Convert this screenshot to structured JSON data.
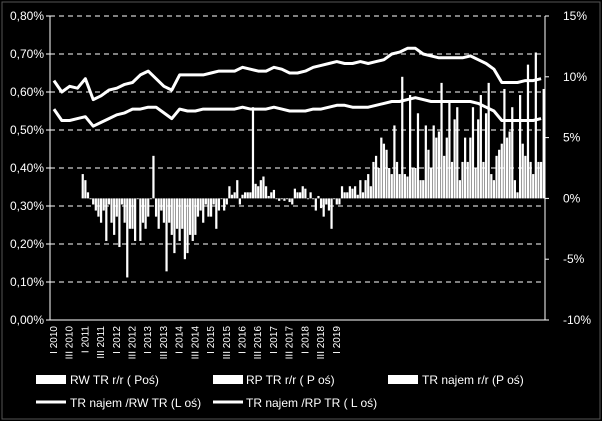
{
  "chart_data": {
    "type": "bar",
    "background": "#000000",
    "foreground": "#ffffff",
    "grid": "dashed horizontal",
    "legend_position": "bottom",
    "y_left": {
      "range": [
        0,
        0.8
      ],
      "ticks": [
        0,
        0.1,
        0.2,
        0.3,
        0.4,
        0.5,
        0.6,
        0.7,
        0.8
      ],
      "tick_labels": [
        "0,00%",
        "0,10%",
        "0,20%",
        "0,30%",
        "0,40%",
        "0,50%",
        "0,60%",
        "0,70%",
        "0,80%"
      ]
    },
    "y_right": {
      "range": [
        -10,
        15
      ],
      "ticks": [
        -10,
        -5,
        0,
        5,
        10,
        15
      ],
      "tick_labels": [
        "-10%",
        "-5%",
        "0%",
        "5%",
        "10%",
        "15%"
      ]
    },
    "x_tick_labels": [
      "I 2010",
      "III 2010",
      "I 2011",
      "III 2011",
      "I 2012",
      "III 2012",
      "I 2013",
      "III 2013",
      "I 2014",
      "III 2014",
      "I 2015",
      "III 2015",
      "I 2016",
      "III 2016",
      "I 2017",
      "III 2017",
      "I 2018",
      "III 2018",
      "I 2019"
    ],
    "legend": [
      {
        "label": "RW TR  r/r  ( Poś)",
        "type": "bar"
      },
      {
        "label": "RP TR r/r  ( P oś)",
        "type": "bar"
      },
      {
        "label": "TR najem r/r  (P oś)",
        "type": "bar"
      },
      {
        "label": "TR najem /RW TR  (L oś)",
        "type": "line"
      },
      {
        "label": "TR najem /RP TR  ( L oś)",
        "type": "line"
      }
    ],
    "bar_series": [
      {
        "name": "RW TR  r/r  ( Poś)",
        "values": [
          null,
          null,
          null,
          null,
          2.0,
          0.0,
          -1.5,
          -3.5,
          -3.0,
          -0.5,
          -2.5,
          0.0,
          -2.5,
          3.5,
          -1.0,
          -2.0,
          -2.5,
          -5.0,
          -3.5,
          -1.0,
          -1.5,
          -2.5,
          -1.0,
          0.3,
          -0.5,
          0.5,
          1.2,
          1.8,
          0.5,
          -0.2,
          0.0,
          0.8,
          1.0,
          0.5,
          0.2,
          -0.5,
          0.0,
          1.0,
          1.0,
          0.3,
          1.5,
          3.0,
          5.0,
          2.5,
          3.0,
          2.0,
          2.5,
          1.5,
          4.0,
          5.0,
          3.5,
          3.0,
          1.5,
          3.0,
          2.5,
          3.0,
          2.0,
          4.0,
          5.0,
          1.5,
          4.5,
          3.0,
          3.0
        ]
      },
      {
        "name": "RP TR r/r  ( P oś)",
        "values": [
          null,
          null,
          null,
          null,
          1.5,
          -0.5,
          -2.0,
          -0.5,
          -1.5,
          -2.0,
          -2.5,
          -3.5,
          -1.5,
          -1.5,
          -2.0,
          -3.0,
          -3.5,
          -4.5,
          -3.0,
          -2.0,
          -1.5,
          -1.0,
          -0.5,
          0.5,
          0.3,
          0.5,
          1.0,
          1.0,
          0.7,
          0.0,
          -0.3,
          0.5,
          0.8,
          0.0,
          -0.8,
          -1.0,
          -0.5,
          0.5,
          0.8,
          1.5,
          2.0,
          3.5,
          4.5,
          2.0,
          2.0,
          1.8,
          2.5,
          1.5,
          2.5,
          5.5,
          5.0,
          6.5,
          3.0,
          5.0,
          6.5,
          7.0,
          1.5,
          4.5,
          5.5,
          0.5,
          3.5,
          2.0,
          3.0
        ]
      },
      {
        "name": "TR najem r/r  (P oś)",
        "values": [
          null,
          null,
          null,
          null,
          0.5,
          -1.0,
          -1.0,
          -2.0,
          -4.0,
          -6.5,
          -3.5,
          -2.0,
          0.0,
          -2.5,
          -6.0,
          -4.5,
          -2.5,
          -3.0,
          -1.5,
          -0.5,
          -0.5,
          0.0,
          1.0,
          1.5,
          0.5,
          7.5,
          1.5,
          0.2,
          0.0,
          -0.2,
          -0.5,
          0.5,
          0.0,
          -1.0,
          -1.5,
          -2.5,
          -0.5,
          0.5,
          1.0,
          0.5,
          1.0,
          2.5,
          4.0,
          6.0,
          10.0,
          8.5,
          7.0,
          6.0,
          6.0,
          9.5,
          8.0,
          7.5,
          5.0,
          7.5,
          8.5,
          9.5,
          3.5,
          9.0,
          7.5,
          8.5,
          11.0,
          12.0,
          9.0
        ]
      }
    ],
    "line_series": [
      {
        "name": "TR najem /RW TR  (L oś)",
        "values": [
          0.63,
          0.6,
          0.615,
          0.61,
          0.635,
          0.58,
          0.59,
          0.605,
          0.61,
          0.62,
          0.625,
          0.645,
          0.655,
          0.635,
          0.615,
          0.605,
          0.645,
          0.645,
          0.645,
          0.645,
          0.65,
          0.655,
          0.655,
          0.655,
          0.665,
          0.66,
          0.655,
          0.655,
          0.665,
          0.66,
          0.65,
          0.65,
          0.655,
          0.665,
          0.67,
          0.675,
          0.68,
          0.675,
          0.675,
          0.68,
          0.675,
          0.68,
          0.685,
          0.7,
          0.705,
          0.715,
          0.715,
          0.7,
          0.695,
          0.69,
          0.69,
          0.69,
          0.69,
          0.695,
          0.685,
          0.675,
          0.66,
          0.625,
          0.625,
          0.625,
          0.63,
          0.63,
          0.635
        ]
      },
      {
        "name": "TR najem /RP TR  ( L oś)",
        "values": [
          0.555,
          0.525,
          0.525,
          0.53,
          0.535,
          0.51,
          0.52,
          0.53,
          0.54,
          0.545,
          0.555,
          0.555,
          0.56,
          0.56,
          0.545,
          0.53,
          0.555,
          0.55,
          0.55,
          0.555,
          0.555,
          0.555,
          0.555,
          0.555,
          0.56,
          0.555,
          0.555,
          0.555,
          0.56,
          0.555,
          0.55,
          0.55,
          0.55,
          0.555,
          0.555,
          0.56,
          0.565,
          0.565,
          0.56,
          0.56,
          0.56,
          0.565,
          0.57,
          0.575,
          0.575,
          0.58,
          0.585,
          0.58,
          0.575,
          0.575,
          0.575,
          0.575,
          0.575,
          0.575,
          0.57,
          0.56,
          0.55,
          0.525,
          0.525,
          0.525,
          0.525,
          0.525,
          0.53
        ]
      }
    ]
  }
}
